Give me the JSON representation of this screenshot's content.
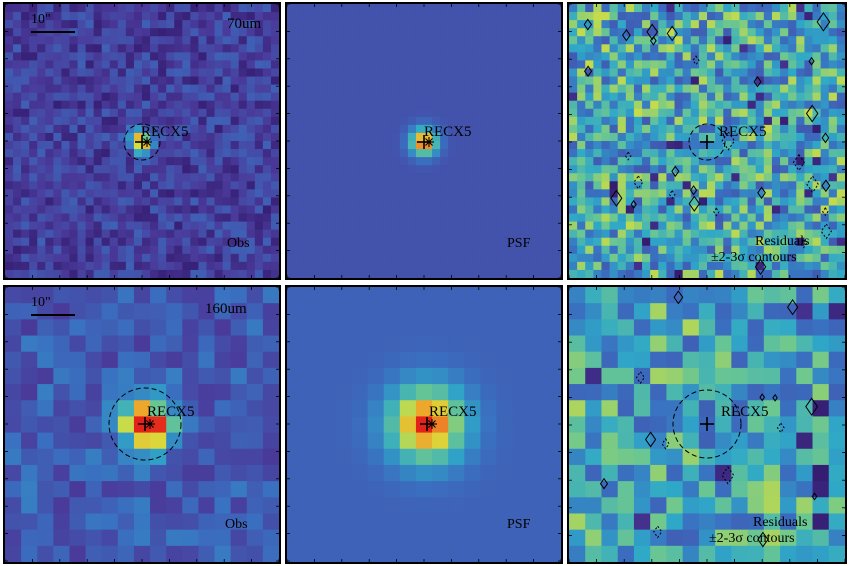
{
  "figure": {
    "rows": [
      {
        "band": "70um",
        "scale_label": "10\"",
        "source_label": "RECX5",
        "panels": [
          {
            "kind": "obs",
            "label": "Obs"
          },
          {
            "kind": "psf",
            "label": "PSF"
          },
          {
            "kind": "res",
            "label_line1": "Residuals",
            "label_line2": "±2-3σ contours"
          }
        ]
      },
      {
        "band": "160um",
        "scale_label": "10\"",
        "source_label": "RECX5",
        "panels": [
          {
            "kind": "obs",
            "label": "Obs"
          },
          {
            "kind": "psf",
            "label": "PSF"
          },
          {
            "kind": "res",
            "label_line1": "Residuals",
            "label_line2": "±2-3σ contours"
          }
        ]
      }
    ]
  },
  "colors": {
    "background_blue": "#3a52a8",
    "map_low": "#3b1f7a",
    "map_mid": "#3f8fc9",
    "map_high": "#e5e33b",
    "map_peak": "#e8341c",
    "contour": "#000000"
  }
}
